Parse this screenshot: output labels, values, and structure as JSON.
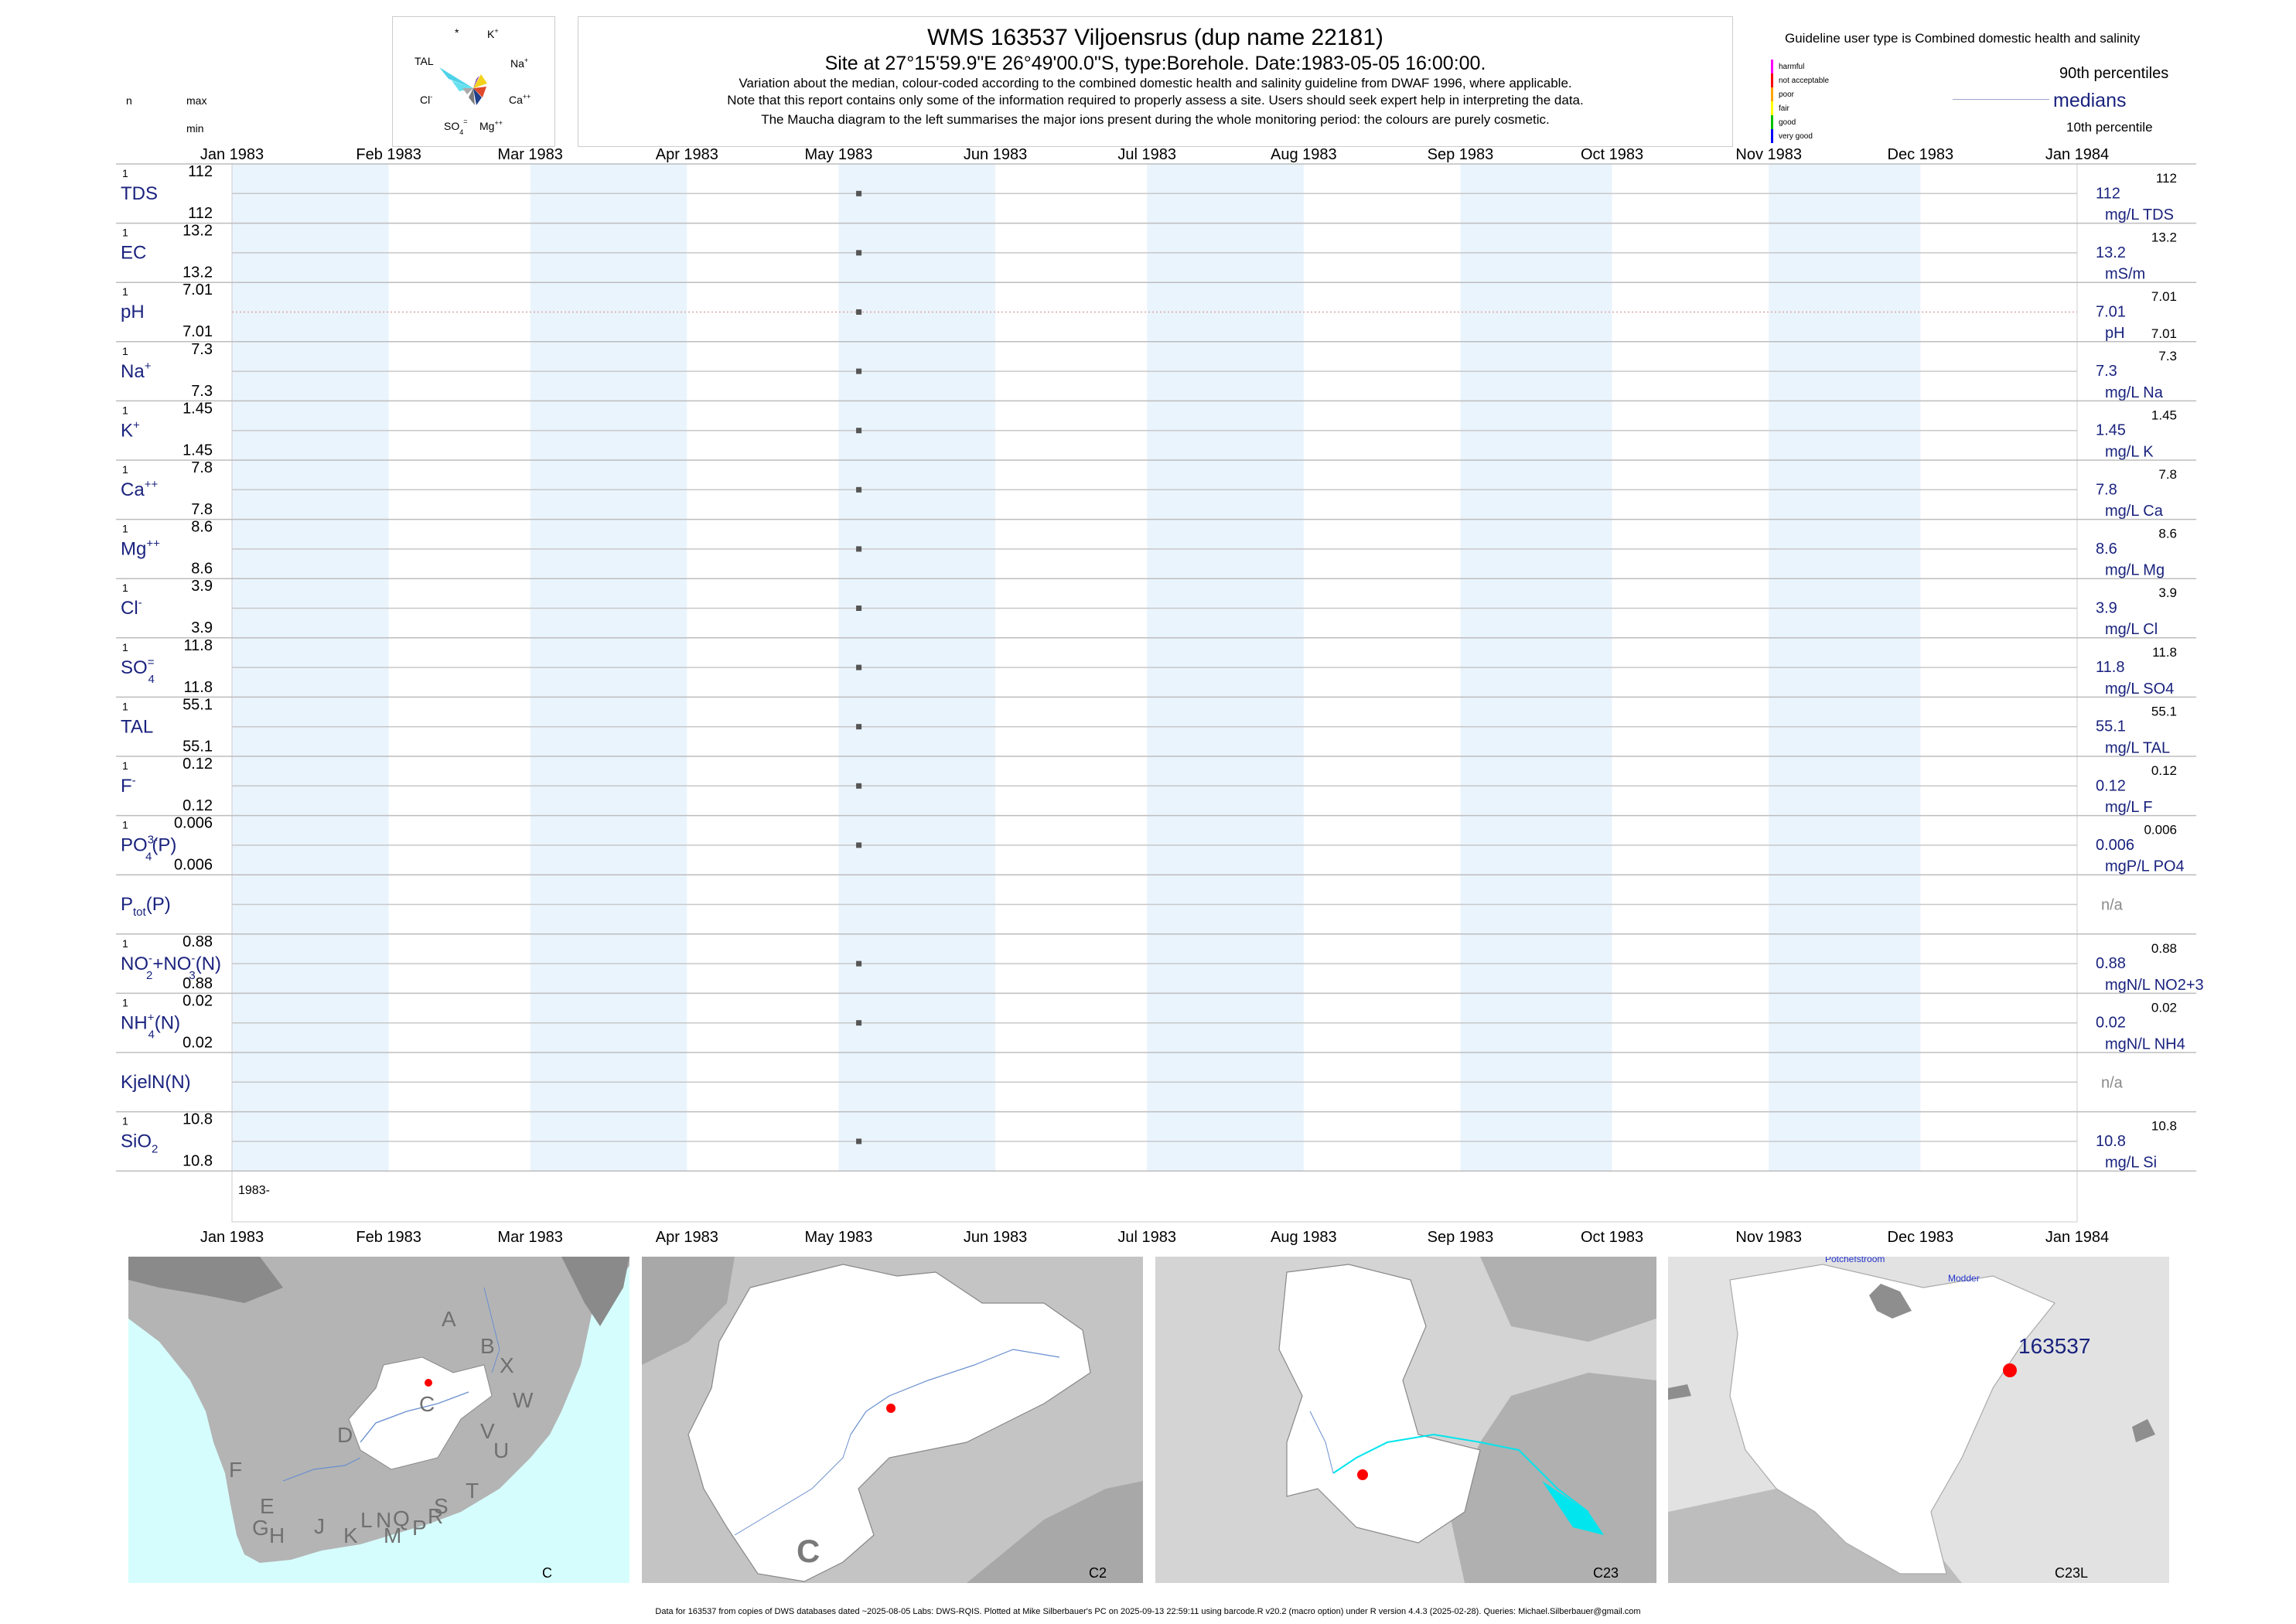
{
  "header": {
    "title": "WMS 163537  Viljoensrus (dup name 22181)",
    "subtitle": "Site at 27°15'59.9\"E 26°49'00.0\"S, type:Borehole. Date:1983-05-05 16:00:00.",
    "notes": [
      "Variation about the median,  colour-coded according to the combined domestic health and salinity guideline from DWAF 1996, where applicable.",
      "Note that this report contains only some of the information required to properly assess a site. Users should seek expert help in interpreting the data.",
      "The Maucha diagram to the left summarises the major ions present during the whole monitoring period: the colours are purely cosmetic."
    ]
  },
  "maucha": {
    "labels": {
      "star": "*",
      "k": "K",
      "k_sup": "+",
      "tal": "TAL",
      "na": "Na",
      "na_sup": "+",
      "cl": "Cl",
      "cl_sup": "-",
      "ca": "Ca",
      "ca_sup": "++",
      "so4": "SO",
      "so4_sub": "4",
      "so4_sup": "=",
      "mg": "Mg",
      "mg_sup": "++"
    }
  },
  "legend": {
    "guideline": "Guideline user type is Combined domestic health and salinity",
    "classes": [
      {
        "label": "harmful",
        "color": "#ff00ff"
      },
      {
        "label": "not acceptable",
        "color": "#ff0000"
      },
      {
        "label": "poor",
        "color": "#ffa500"
      },
      {
        "label": "fair",
        "color": "#ffff00"
      },
      {
        "label": "good",
        "color": "#00c000"
      },
      {
        "label": "very good",
        "color": "#0000ff"
      }
    ],
    "p90": "90th percentiles",
    "medians": "medians",
    "p10": "10th percentile"
  },
  "left_header": {
    "n": "n",
    "max": "max",
    "min": "min"
  },
  "chart_data": {
    "type": "scatter",
    "x_range": [
      "1983-01-01",
      "1984-01-01"
    ],
    "months": [
      "Jan 1983",
      "Feb 1983",
      "Mar 1983",
      "Apr 1983",
      "May 1983",
      "Jun 1983",
      "Jul 1983",
      "Aug 1983",
      "Sep 1983",
      "Oct 1983",
      "Nov 1983",
      "Dec 1983",
      "Jan 1984"
    ],
    "sample_date": "1983-05-05",
    "year_label": "1983-",
    "variables": [
      {
        "name": "TDS",
        "n": "1",
        "max": "112",
        "min": "112",
        "median": "112",
        "unit": "mg/L TDS",
        "rmax": "112",
        "rmin": "",
        "value": 112
      },
      {
        "name": "EC",
        "n": "1",
        "max": "13.2",
        "min": "13.2",
        "median": "13.2",
        "unit": "mS/m",
        "rmax": "13.2",
        "rmin": "",
        "value": 13.2
      },
      {
        "name": "pH",
        "n": "1",
        "max": "7.01",
        "min": "7.01",
        "median": "7.01",
        "unit": "pH",
        "rmax": "7.01",
        "rmin": "7.01",
        "value": 7.01
      },
      {
        "name": "Na",
        "sup": "+",
        "n": "1",
        "max": "7.3",
        "min": "7.3",
        "median": "7.3",
        "unit": "mg/L Na",
        "rmax": "7.3",
        "rmin": "",
        "value": 7.3
      },
      {
        "name": "K",
        "sup": "+",
        "n": "1",
        "max": "1.45",
        "min": "1.45",
        "median": "1.45",
        "unit": "mg/L K",
        "rmax": "1.45",
        "rmin": "",
        "value": 1.45
      },
      {
        "name": "Ca",
        "sup": "++",
        "n": "1",
        "max": "7.8",
        "min": "7.8",
        "median": "7.8",
        "unit": "mg/L Ca",
        "rmax": "7.8",
        "rmin": "",
        "value": 7.8
      },
      {
        "name": "Mg",
        "sup": "++",
        "n": "1",
        "max": "8.6",
        "min": "8.6",
        "median": "8.6",
        "unit": "mg/L Mg",
        "rmax": "8.6",
        "rmin": "",
        "value": 8.6
      },
      {
        "name": "Cl",
        "sup": "-",
        "n": "1",
        "max": "3.9",
        "min": "3.9",
        "median": "3.9",
        "unit": "mg/L Cl",
        "rmax": "3.9",
        "rmin": "",
        "value": 3.9
      },
      {
        "name": "SO",
        "sub": "4",
        "sup": "=",
        "n": "1",
        "max": "11.8",
        "min": "11.8",
        "median": "11.8",
        "unit": "mg/L SO4",
        "rmax": "11.8",
        "rmin": "",
        "value": 11.8
      },
      {
        "name": "TAL",
        "n": "1",
        "max": "55.1",
        "min": "55.1",
        "median": "55.1",
        "unit": "mg/L TAL",
        "rmax": "55.1",
        "rmin": "",
        "value": 55.1
      },
      {
        "name": "F",
        "sup": "-",
        "n": "1",
        "max": "0.12",
        "min": "0.12",
        "median": "0.12",
        "unit": "mg/L F",
        "rmax": "0.12",
        "rmin": "",
        "value": 0.12
      },
      {
        "name": "PO",
        "sub": "4",
        "sup": "3-",
        "suffix": "(P)",
        "n": "1",
        "max": "0.006",
        "min": "0.006",
        "median": "0.006",
        "unit": "mgP/L PO4",
        "rmax": "0.006",
        "rmin": "",
        "value": 0.006
      },
      {
        "name": "P",
        "sub": "tot",
        "suffix": "(P)",
        "n": "",
        "max": "",
        "min": "",
        "median": "n/a",
        "unit": "",
        "rmax": "",
        "rmin": "",
        "value": null
      },
      {
        "name": "NO",
        "sub": "2",
        "sup": "-",
        "suffix": "+NO",
        "sub2": "3",
        "sup2": "-",
        "suffix2": "(N)",
        "n": "1",
        "max": "0.88",
        "min": "0.88",
        "median": "0.88",
        "unit": "mgN/L NO2+3",
        "rmax": "0.88",
        "rmin": "",
        "value": 0.88
      },
      {
        "name": "NH",
        "sub": "4",
        "sup": "+",
        "suffix": "(N)",
        "n": "1",
        "max": "0.02",
        "min": "0.02",
        "median": "0.02",
        "unit": "mgN/L NH4",
        "rmax": "0.02",
        "rmin": "",
        "value": 0.02
      },
      {
        "name": "KjelN(N)",
        "n": "",
        "max": "",
        "min": "",
        "median": "n/a",
        "unit": "",
        "rmax": "",
        "rmin": "",
        "value": null
      },
      {
        "name": "SiO",
        "sub": "2",
        "n": "1",
        "max": "10.8",
        "min": "10.8",
        "median": "10.8",
        "unit": "mg/L Si",
        "rmax": "10.8",
        "rmin": "",
        "value": 10.8
      }
    ]
  },
  "maps": {
    "panel1": {
      "caption": "C",
      "region_letters": [
        "A",
        "B",
        "X",
        "W",
        "C",
        "D",
        "V",
        "U",
        "F",
        "T",
        "E",
        "S",
        "L",
        "N",
        "Q",
        "R",
        "G",
        "H",
        "J",
        "K",
        "M",
        "P"
      ]
    },
    "panel2": {
      "caption": "C2",
      "region_letter": "C"
    },
    "panel3": {
      "caption": "C23"
    },
    "panel4": {
      "caption": "C23L",
      "site_label": "163537",
      "places": [
        "Potchefstroom",
        "Modder"
      ]
    }
  },
  "footer": "Data for 163537 from copies of DWS databases dated ~2025-08-05 Labs: DWS-RQIS. Plotted at Mike Silberbauer's PC on 2025-09-13 22:59:11 using barcode.R v20.2 (macro option) under R version 4.4.3 (2025-02-28). Queries: Michael.Silberbauer@gmail.com"
}
